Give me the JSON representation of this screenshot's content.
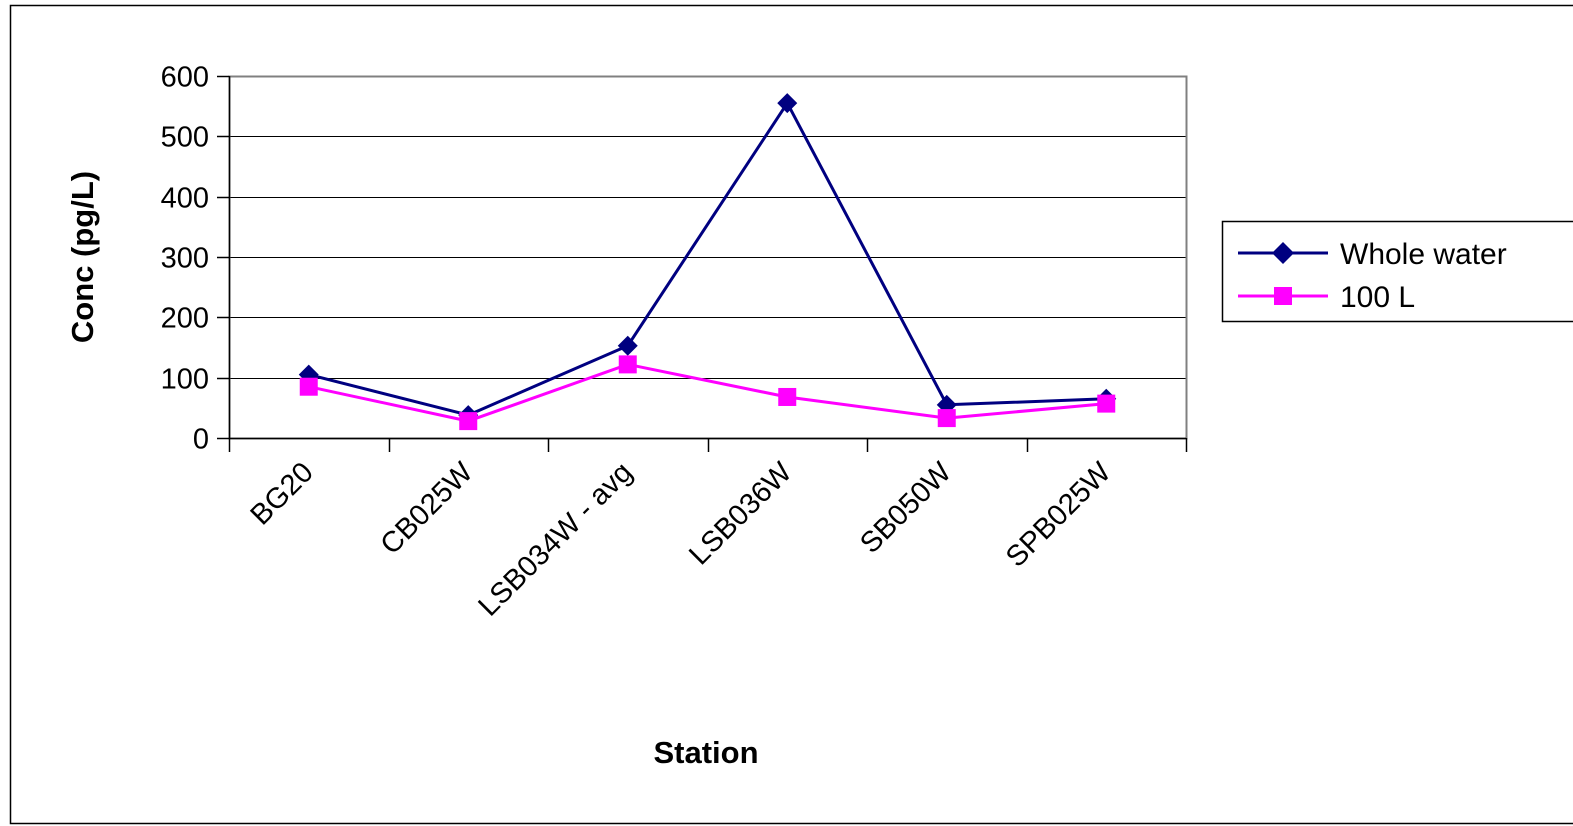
{
  "chart_data": {
    "type": "line",
    "title": "",
    "xlabel": "Station",
    "ylabel": "Conc (pg/L)",
    "categories": [
      "BG20",
      "CB025W",
      "LSB034W - avg",
      "LSB036W",
      "SB050W",
      "SPB025W"
    ],
    "ylim": [
      0,
      600
    ],
    "yticks": [
      "0",
      "100",
      "200",
      "300",
      "400",
      "500",
      "600"
    ],
    "grid": true,
    "legend_position": "right",
    "series": [
      {
        "name": "Whole water",
        "color": "#000080",
        "marker": "diamond",
        "values": [
          105,
          38,
          153,
          555,
          55,
          65
        ]
      },
      {
        "name": "100 L",
        "color": "#FF00FF",
        "marker": "square",
        "values": [
          85,
          28,
          122,
          68,
          33,
          57
        ]
      }
    ]
  }
}
